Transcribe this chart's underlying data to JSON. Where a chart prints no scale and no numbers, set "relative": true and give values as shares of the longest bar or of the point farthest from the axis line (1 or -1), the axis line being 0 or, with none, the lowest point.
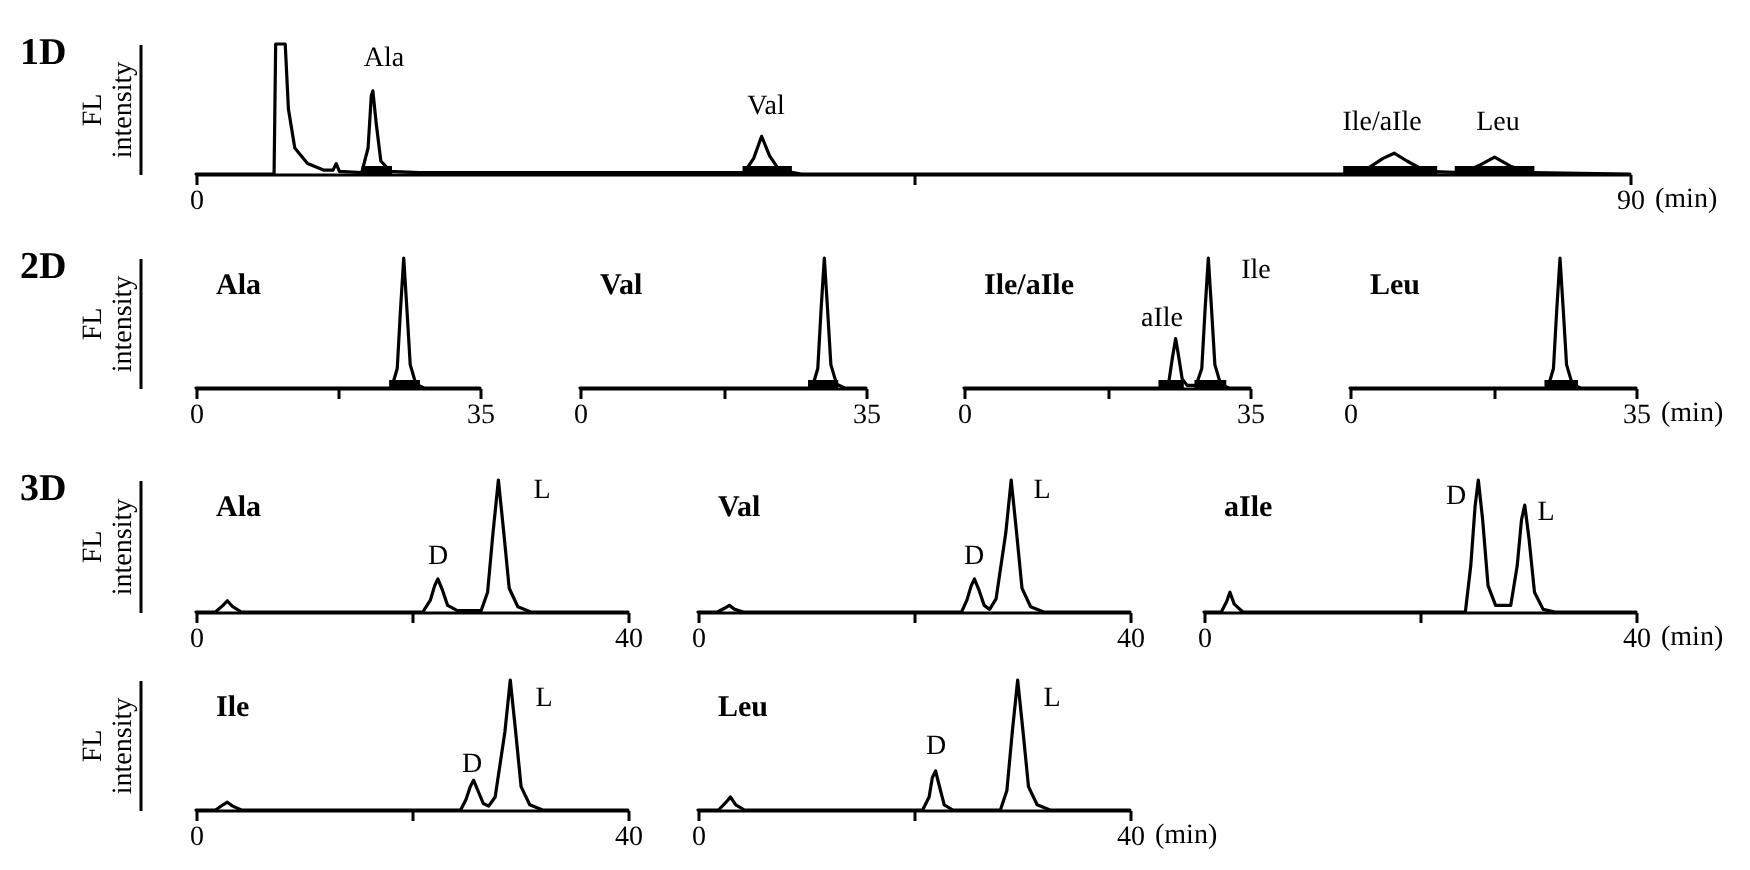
{
  "chart_data": [
    {
      "type": "line",
      "relative": true,
      "color": "#000000",
      "annotations": [
        "1D",
        "Ala",
        "Val",
        "Ile/aIle",
        "Leu"
      ],
      "ylabel": "FL intensity",
      "xlabel": "(min)",
      "xlim": [
        0,
        90
      ],
      "xticks": [
        0,
        {
          "value": 45,
          "label": null
        },
        90
      ],
      "bands": [
        {
          "axis": "x",
          "from": 10.4,
          "to": 12.3,
          "color": "#000000"
        },
        {
          "axis": "x",
          "from": 34.3,
          "to": 37.4,
          "color": "#000000"
        },
        {
          "axis": "x",
          "from": 72,
          "to": 77.9,
          "color": "#000000"
        },
        {
          "axis": "x",
          "from": 79,
          "to": 84,
          "color": "#000000"
        }
      ],
      "x": [
        0,
        4.9,
        5.0,
        5.6,
        5.8,
        6.2,
        7,
        8,
        8.6,
        8.8,
        9.0,
        10.4,
        10.8,
        11.0,
        11.1,
        11.3,
        11.6,
        12.2,
        14,
        34.4,
        35.0,
        35.5,
        36.0,
        36.6,
        38,
        72,
        73.5,
        74.5,
        75.2,
        76,
        77.2,
        79.5,
        80.6,
        81.5,
        82.5,
        83.8,
        90
      ],
      "values": [
        0,
        0,
        1,
        1,
        0.5,
        0.2,
        0.08,
        0.03,
        0.03,
        0.08,
        0.02,
        0.01,
        0.2,
        0.6,
        0.64,
        0.4,
        0.1,
        0.02,
        0.01,
        0.01,
        0.12,
        0.29,
        0.14,
        0.03,
        0,
        0,
        0.04,
        0.12,
        0.16,
        0.1,
        0.02,
        0.01,
        0.07,
        0.13,
        0.06,
        0.01,
        0
      ]
    },
    {
      "type": "line",
      "relative": true,
      "color": "#000000",
      "title": "Ala",
      "annotations": [
        "2D"
      ],
      "ylabel": "FL intensity",
      "xlim": [
        0,
        35
      ],
      "xticks": [
        0,
        {
          "value": 17.5,
          "label": null
        },
        35
      ],
      "bands": [
        {
          "axis": "x",
          "from": 23.8,
          "to": 27.6,
          "color": "#000000"
        }
      ],
      "x": [
        0,
        24.1,
        24.8,
        25.2,
        25.6,
        26.0,
        26.4,
        27.1,
        28.1,
        35
      ],
      "values": [
        0,
        0,
        0.15,
        0.6,
        1,
        0.6,
        0.18,
        0.03,
        0,
        0
      ]
    },
    {
      "type": "line",
      "relative": true,
      "color": "#000000",
      "title": "Val",
      "xlim": [
        0,
        35
      ],
      "xticks": [
        0,
        {
          "value": 17.5,
          "label": null
        },
        35
      ],
      "bands": [
        {
          "axis": "x",
          "from": 27.9,
          "to": 31.6,
          "color": "#000000"
        }
      ],
      "x": [
        0,
        28.4,
        29.1,
        29.5,
        29.9,
        30.3,
        30.7,
        31.4,
        32.4,
        35
      ],
      "values": [
        0,
        0,
        0.15,
        0.6,
        1,
        0.6,
        0.18,
        0.03,
        0,
        0
      ]
    },
    {
      "type": "line",
      "relative": true,
      "color": "#000000",
      "title": "Ile/aIle",
      "annotations": [
        "aIle",
        "Ile"
      ],
      "xlim": [
        0,
        35
      ],
      "xticks": [
        0,
        {
          "value": 17.5,
          "label": null
        },
        35
      ],
      "bands": [
        {
          "axis": "x",
          "from": 23.8,
          "to": 26.9,
          "color": "#000000"
        },
        {
          "axis": "x",
          "from": 28.2,
          "to": 32.1,
          "color": "#000000"
        }
      ],
      "x": [
        0,
        24.4,
        25.1,
        25.5,
        25.9,
        26.3,
        26.7,
        27.3,
        28.4,
        29.1,
        29.5,
        29.9,
        30.3,
        30.7,
        31.4,
        32.4,
        35
      ],
      "values": [
        0,
        0,
        0.06,
        0.23,
        0.38,
        0.23,
        0.07,
        0.02,
        0.02,
        0.15,
        0.6,
        1,
        0.6,
        0.18,
        0.03,
        0,
        0
      ]
    },
    {
      "type": "line",
      "relative": true,
      "color": "#000000",
      "title": "Leu",
      "xlabel": "(min)",
      "xlim": [
        0,
        35
      ],
      "xticks": [
        0,
        {
          "value": 17.5,
          "label": null
        },
        35
      ],
      "bands": [
        {
          "axis": "x",
          "from": 23.8,
          "to": 27.9,
          "color": "#000000"
        }
      ],
      "x": [
        0,
        24.2,
        24.9,
        25.3,
        25.7,
        26.1,
        26.5,
        27.2,
        28.2,
        35
      ],
      "values": [
        0,
        0,
        0.15,
        0.6,
        1,
        0.6,
        0.18,
        0.03,
        0,
        0
      ]
    },
    {
      "type": "line",
      "relative": true,
      "color": "#000000",
      "title": "Ala",
      "annotations": [
        "3D",
        "D",
        "L"
      ],
      "ylabel": "FL intensity",
      "xlim": [
        0,
        40
      ],
      "xticks": [
        0,
        {
          "value": 20,
          "label": null
        },
        40
      ],
      "x": [
        0,
        1.8,
        2.5,
        2.9,
        3.4,
        4.2,
        21.0,
        21.7,
        22.1,
        22.4,
        22.8,
        23.3,
        24.2,
        26.4,
        27.0,
        27.5,
        28.0,
        28.5,
        29.0,
        29.8,
        31,
        40
      ],
      "values": [
        0,
        0,
        0.05,
        0.085,
        0.04,
        0,
        0,
        0.09,
        0.2,
        0.25,
        0.17,
        0.05,
        0.01,
        0.01,
        0.15,
        0.6,
        1,
        0.6,
        0.18,
        0.04,
        0,
        0
      ]
    },
    {
      "type": "line",
      "relative": true,
      "color": "#000000",
      "title": "Val",
      "annotations": [
        "D",
        "L"
      ],
      "xlim": [
        0,
        40
      ],
      "xticks": [
        0,
        {
          "value": 20,
          "label": null
        },
        40
      ],
      "x": [
        0,
        1.8,
        2.5,
        2.9,
        3.4,
        4.2,
        24.4,
        24.9,
        25.3,
        25.6,
        26.0,
        26.5,
        27.0,
        27.6,
        28.5,
        29.0,
        29.5,
        30.0,
        30.8,
        32,
        40
      ],
      "values": [
        0,
        0,
        0.03,
        0.05,
        0.02,
        0,
        0,
        0.09,
        0.2,
        0.25,
        0.17,
        0.05,
        0.02,
        0.1,
        0.6,
        1,
        0.6,
        0.18,
        0.04,
        0,
        0
      ]
    },
    {
      "type": "line",
      "relative": true,
      "color": "#000000",
      "title": "aIle",
      "xlabel": "(min)",
      "annotations": [
        "D",
        "L"
      ],
      "xlim": [
        0,
        40
      ],
      "xticks": [
        0,
        {
          "value": 20,
          "label": null
        },
        40
      ],
      "x": [
        0,
        1.6,
        2.1,
        2.4,
        2.8,
        3.6,
        24.2,
        24.7,
        25.1,
        25.4,
        25.8,
        26.3,
        27.0,
        28.4,
        29.0,
        29.4,
        29.7,
        30.1,
        30.6,
        31.4,
        32.5,
        40
      ],
      "values": [
        0,
        0,
        0.08,
        0.15,
        0.06,
        0,
        0,
        0.35,
        0.8,
        1,
        0.7,
        0.2,
        0.05,
        0.05,
        0.35,
        0.7,
        0.81,
        0.55,
        0.15,
        0.02,
        0,
        0
      ]
    },
    {
      "type": "line",
      "relative": true,
      "color": "#000000",
      "title": "Ile",
      "annotations": [
        "D",
        "L"
      ],
      "ylabel": "FL intensity",
      "xlim": [
        0,
        40
      ],
      "xticks": [
        0,
        {
          "value": 20,
          "label": null
        },
        40
      ],
      "x": [
        0,
        1.8,
        2.5,
        2.9,
        3.4,
        4.2,
        24.5,
        25.0,
        25.4,
        25.7,
        26.1,
        26.6,
        27.1,
        27.7,
        28.6,
        29.1,
        29.6,
        30.1,
        30.9,
        32.1,
        40
      ],
      "values": [
        0,
        0,
        0.04,
        0.06,
        0.03,
        0,
        0,
        0.08,
        0.18,
        0.23,
        0.15,
        0.05,
        0.03,
        0.1,
        0.6,
        1,
        0.6,
        0.18,
        0.04,
        0,
        0
      ]
    },
    {
      "type": "line",
      "relative": true,
      "color": "#000000",
      "title": "Leu",
      "xlabel": "(min)",
      "annotations": [
        "D",
        "L"
      ],
      "xlim": [
        0,
        40
      ],
      "xticks": [
        0,
        {
          "value": 20,
          "label": null
        },
        40
      ],
      "x": [
        0,
        1.9,
        2.6,
        3.0,
        3.5,
        4.3,
        20.8,
        21.4,
        21.7,
        22.0,
        22.3,
        22.8,
        23.6,
        28.0,
        28.6,
        29.1,
        29.6,
        30.1,
        30.6,
        31.4,
        32.6,
        40
      ],
      "values": [
        0,
        0,
        0.06,
        0.1,
        0.04,
        0,
        0,
        0.1,
        0.25,
        0.3,
        0.2,
        0.04,
        0,
        0,
        0.15,
        0.6,
        1,
        0.6,
        0.18,
        0.04,
        0,
        0
      ]
    }
  ]
}
